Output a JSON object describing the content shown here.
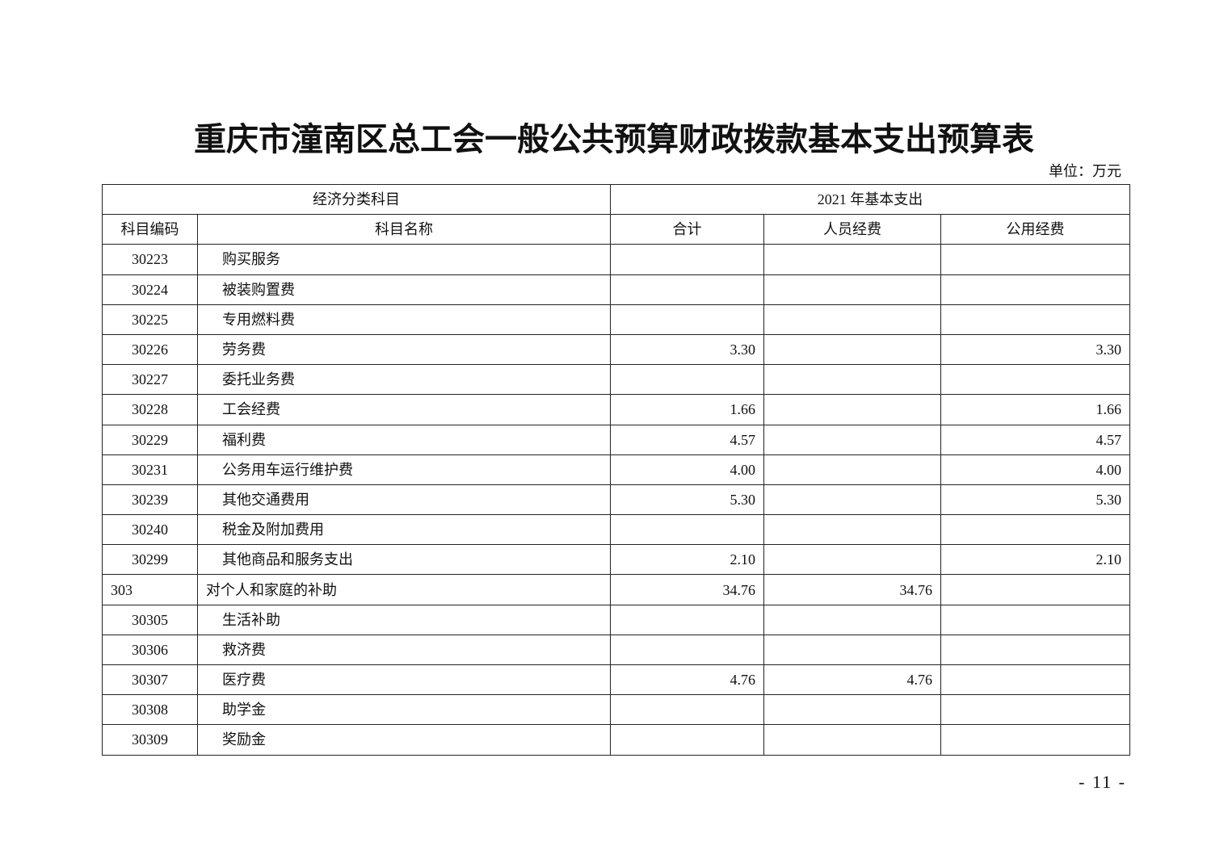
{
  "title": "重庆市潼南区总工会一般公共预算财政拨款基本支出预算表",
  "unit": "单位：万元",
  "header": {
    "group_left": "经济分类科目",
    "group_right": "2021 年基本支出",
    "columns": [
      "科目编码",
      "科目名称",
      "合计",
      "人员经费",
      "公用经费"
    ]
  },
  "rows": [
    {
      "code": "30223",
      "name": "购买服务",
      "total": "",
      "personnel": "",
      "public": "",
      "level": 2
    },
    {
      "code": "30224",
      "name": "被装购置费",
      "total": "",
      "personnel": "",
      "public": "",
      "level": 2
    },
    {
      "code": "30225",
      "name": "专用燃料费",
      "total": "",
      "personnel": "",
      "public": "",
      "level": 2
    },
    {
      "code": "30226",
      "name": "劳务费",
      "total": "3.30",
      "personnel": "",
      "public": "3.30",
      "level": 2
    },
    {
      "code": "30227",
      "name": "委托业务费",
      "total": "",
      "personnel": "",
      "public": "",
      "level": 2
    },
    {
      "code": "30228",
      "name": "工会经费",
      "total": "1.66",
      "personnel": "",
      "public": "1.66",
      "level": 2
    },
    {
      "code": "30229",
      "name": "福利费",
      "total": "4.57",
      "personnel": "",
      "public": "4.57",
      "level": 2
    },
    {
      "code": "30231",
      "name": "公务用车运行维护费",
      "total": "4.00",
      "personnel": "",
      "public": "4.00",
      "level": 2
    },
    {
      "code": "30239",
      "name": "其他交通费用",
      "total": "5.30",
      "personnel": "",
      "public": "5.30",
      "level": 2
    },
    {
      "code": "30240",
      "name": "税金及附加费用",
      "total": "",
      "personnel": "",
      "public": "",
      "level": 2
    },
    {
      "code": "30299",
      "name": "其他商品和服务支出",
      "total": "2.10",
      "personnel": "",
      "public": "2.10",
      "level": 2
    },
    {
      "code": "303",
      "name": "对个人和家庭的补助",
      "total": "34.76",
      "personnel": "34.76",
      "public": "",
      "level": 1
    },
    {
      "code": "30305",
      "name": "生活补助",
      "total": "",
      "personnel": "",
      "public": "",
      "level": 2
    },
    {
      "code": "30306",
      "name": "救济费",
      "total": "",
      "personnel": "",
      "public": "",
      "level": 2
    },
    {
      "code": "30307",
      "name": "医疗费",
      "total": "4.76",
      "personnel": "4.76",
      "public": "",
      "level": 2
    },
    {
      "code": "30308",
      "name": "助学金",
      "total": "",
      "personnel": "",
      "public": "",
      "level": 2
    },
    {
      "code": "30309",
      "name": "奖励金",
      "total": "",
      "personnel": "",
      "public": "",
      "level": 2
    }
  ],
  "page_number": "- 11 -"
}
